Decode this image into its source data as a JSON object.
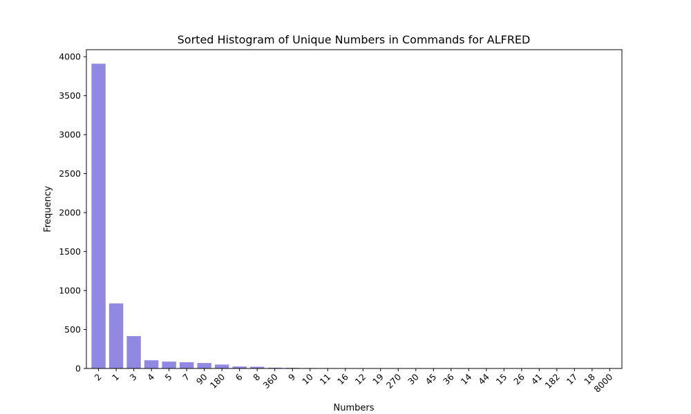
{
  "chart_data": {
    "type": "bar",
    "title": "Sorted Histogram of Unique Numbers in Commands for ALFRED",
    "xlabel": "Numbers",
    "ylabel": "Frequency",
    "categories": [
      "2",
      "1",
      "3",
      "4",
      "5",
      "7",
      "90",
      "180",
      "6",
      "8",
      "360",
      "9",
      "10",
      "11",
      "16",
      "12",
      "19",
      "270",
      "30",
      "45",
      "36",
      "14",
      "44",
      "15",
      "26",
      "41",
      "182",
      "17",
      "18",
      "8000"
    ],
    "values": [
      3910,
      835,
      415,
      105,
      88,
      80,
      70,
      50,
      25,
      22,
      10,
      8,
      6,
      5,
      3,
      2,
      2,
      2,
      2,
      1,
      1,
      1,
      1,
      1,
      1,
      1,
      1,
      1,
      1,
      1
    ],
    "ylim": [
      0,
      4090
    ],
    "yticks": [
      0,
      500,
      1000,
      1500,
      2000,
      2500,
      3000,
      3500,
      4000
    ],
    "bar_color": "#9189e1",
    "grid": false
  }
}
